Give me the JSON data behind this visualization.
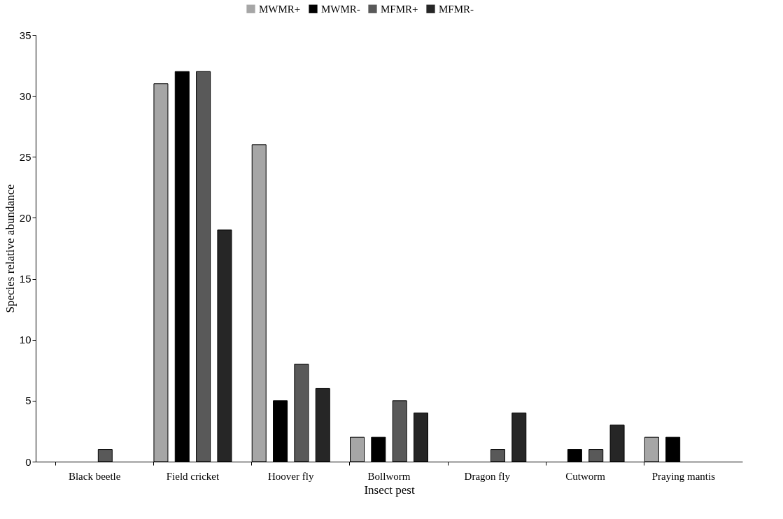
{
  "chart_data": {
    "type": "bar",
    "xlabel": "Insect pest",
    "ylabel": "Species relative abundance",
    "categories": [
      "Black beetle",
      "Field cricket",
      "Hoover fly",
      "Bollworm",
      "Dragon fly",
      "Cutworm",
      "Praying mantis"
    ],
    "series": [
      {
        "name": "MWMR+",
        "color": "#a6a6a6",
        "values": [
          0,
          31,
          26,
          2,
          0,
          0,
          2
        ]
      },
      {
        "name": "MWMR-",
        "color": "#000000",
        "values": [
          0,
          32,
          5,
          2,
          0,
          1,
          2
        ]
      },
      {
        "name": "MFMR+",
        "color": "#595959",
        "values": [
          1,
          32,
          8,
          5,
          1,
          1,
          0
        ]
      },
      {
        "name": "MFMR-",
        "color": "#262626",
        "values": [
          0,
          19,
          6,
          4,
          4,
          3,
          0
        ]
      }
    ],
    "ylim": [
      0,
      35
    ],
    "yticks": [
      0,
      5,
      10,
      15,
      20,
      25,
      30,
      35
    ],
    "grid": false,
    "legend": "top"
  }
}
